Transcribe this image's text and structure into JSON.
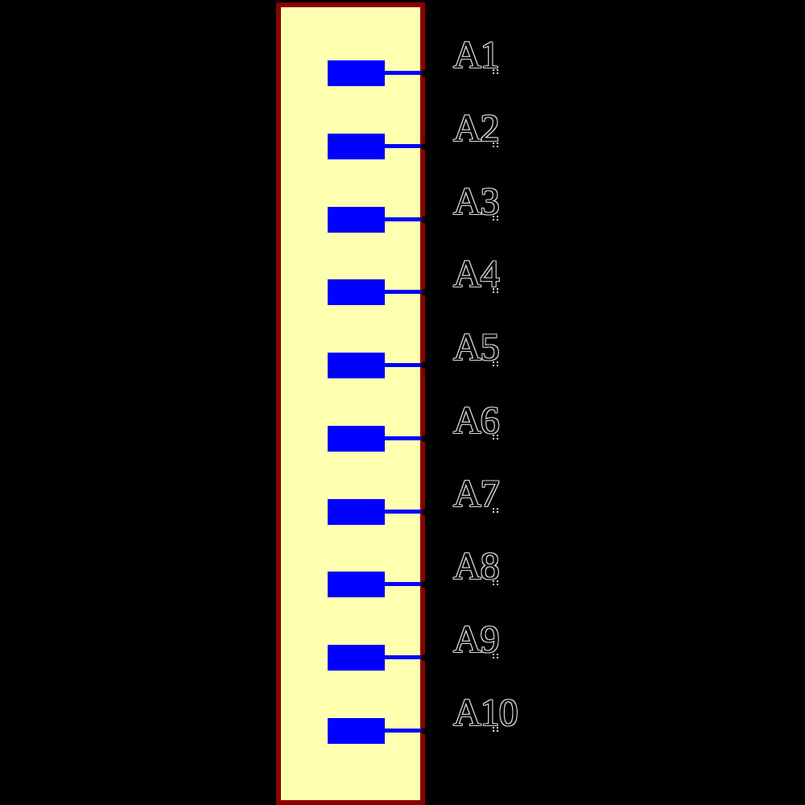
{
  "colors": {
    "background": "#000000",
    "body_fill": "#FFFFB0",
    "body_stroke": "#8B0000",
    "pin_blue": "#0000FF",
    "endpoint_dot": "#000000",
    "label_outline": "#D9D9D9",
    "marker_dot": "#DDDDDD"
  },
  "component": {
    "type": "schematic-symbol",
    "pin_count": 10
  },
  "pins": [
    {
      "label": "A1"
    },
    {
      "label": "A2"
    },
    {
      "label": "A3"
    },
    {
      "label": "A4"
    },
    {
      "label": "A5"
    },
    {
      "label": "A6"
    },
    {
      "label": "A7"
    },
    {
      "label": "A8"
    },
    {
      "label": "A9"
    },
    {
      "label": "A10"
    }
  ]
}
